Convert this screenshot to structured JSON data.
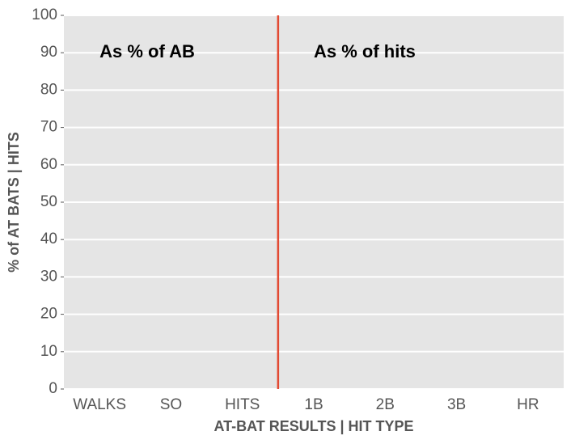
{
  "chart_data": {
    "type": "bar",
    "categories": [
      "WALKS",
      "SO",
      "HITS",
      "1B",
      "2B",
      "3B",
      "HR"
    ],
    "values": [
      0,
      0,
      0,
      0,
      0,
      0,
      0
    ],
    "color": "#348abd",
    "xlabel": "AT-BAT RESULTS | HIT TYPE",
    "ylabel": "% of AT BATS | HITS",
    "ylim": [
      0,
      100
    ],
    "yticks": [
      0,
      10,
      20,
      30,
      40,
      50,
      60,
      70,
      80,
      90,
      100
    ],
    "grid": true,
    "vline": {
      "x": 2.5,
      "color": "#e24a33"
    },
    "annotations": [
      {
        "text": "As % of AB",
        "x": 0,
        "y": 90
      },
      {
        "text": "As % of hits",
        "x": 3,
        "y": 90
      }
    ]
  }
}
